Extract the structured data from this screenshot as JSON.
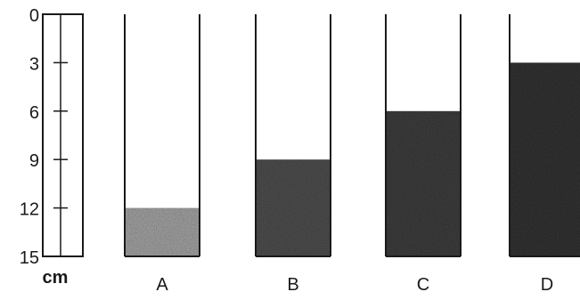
{
  "ruler": {
    "unit_label": "cm",
    "max": 15,
    "ticks": [
      {
        "label": "0",
        "value": 0
      },
      {
        "label": "3",
        "value": 3
      },
      {
        "label": "6",
        "value": 6
      },
      {
        "label": "9",
        "value": 9
      },
      {
        "label": "12",
        "value": 12
      },
      {
        "label": "15",
        "value": 15
      }
    ]
  },
  "tubes": [
    {
      "id": "a",
      "label": "A",
      "fill_depth_cm": 3,
      "shade": "#9a9a9a"
    },
    {
      "id": "b",
      "label": "B",
      "fill_depth_cm": 6,
      "shade": "#4a4a4a"
    },
    {
      "id": "c",
      "label": "C",
      "fill_depth_cm": 9,
      "shade": "#3a3a3a"
    },
    {
      "id": "d",
      "label": "D",
      "fill_depth_cm": 12,
      "shade": "#303030"
    }
  ],
  "colors": {
    "line": "#1a1a1a",
    "background": "#ffffff"
  }
}
